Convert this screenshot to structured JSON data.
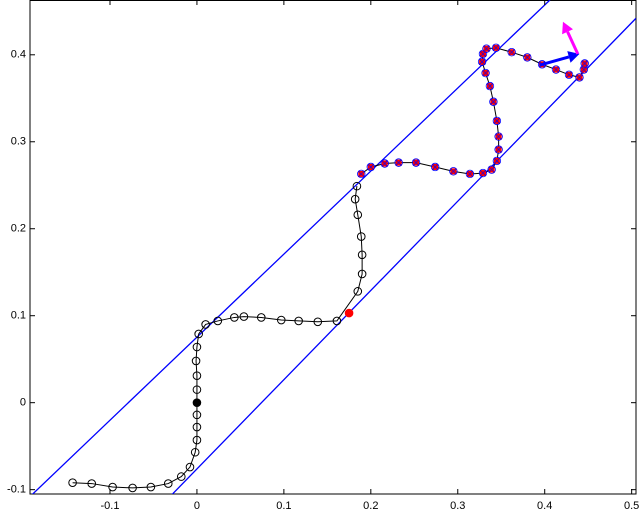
{
  "chart_data": {
    "type": "line",
    "xlim": [
      -0.192,
      0.505
    ],
    "ylim": [
      -0.105,
      0.463
    ],
    "xticks": [
      -0.1,
      0,
      0.1,
      0.2,
      0.3,
      0.4,
      0.5
    ],
    "yticks": [
      -0.1,
      0,
      0.1,
      0.2,
      0.3,
      0.4
    ],
    "series": [
      {
        "color": "#000000",
        "marker": "circle",
        "x": [
          -0.143,
          -0.121,
          -0.097,
          -0.074,
          -0.053,
          -0.033,
          -0.018,
          -0.008,
          -0.002,
          0,
          0,
          0,
          0,
          0,
          -0.001,
          0,
          0.002,
          0.01,
          0.024,
          0.043,
          0.054,
          0.074,
          0.097,
          0.117,
          0.139,
          0.161,
          0.185,
          0.19,
          0.19,
          0.189,
          0.185,
          0.182,
          0.184
        ],
        "y": [
          -0.092,
          -0.093,
          -0.097,
          -0.098,
          -0.097,
          -0.093,
          -0.085,
          -0.074,
          -0.057,
          -0.043,
          -0.028,
          -0.014,
          0.015,
          0.031,
          0.048,
          0.064,
          0.079,
          0.09,
          0.094,
          0.098,
          0.099,
          0.098,
          0.095,
          0.094,
          0.093,
          0.094,
          0.128,
          0.148,
          0.17,
          0.191,
          0.216,
          0.234,
          0.249
        ]
      },
      {
        "color": "#000000",
        "marker": "square",
        "marker_color": "#ff0000",
        "ring_color": "#0000ff",
        "x": [
          0.189,
          0.2,
          0.216,
          0.232,
          0.252,
          0.274,
          0.295,
          0.314,
          0.329,
          0.339,
          0.345,
          0.347,
          0.347,
          0.345,
          0.341,
          0.337,
          0.332,
          0.328,
          0.329,
          0.333,
          0.344,
          0.362,
          0.38,
          0.397,
          0.413,
          0.428,
          0.44,
          0.445,
          0.446
        ],
        "y": [
          0.263,
          0.271,
          0.275,
          0.276,
          0.276,
          0.271,
          0.266,
          0.263,
          0.264,
          0.268,
          0.278,
          0.291,
          0.306,
          0.324,
          0.346,
          0.364,
          0.379,
          0.392,
          0.401,
          0.407,
          0.408,
          0.403,
          0.397,
          0.389,
          0.383,
          0.377,
          0.374,
          0.383,
          0.39
        ]
      }
    ],
    "points": [
      {
        "x": 0,
        "y": 0,
        "color": "#000000"
      },
      {
        "x": 0.175,
        "y": 0.103,
        "color": "#ff0000"
      }
    ],
    "lines": [
      {
        "color": "#0000ff",
        "x": [
          -0.192,
          0.406
        ],
        "y": [
          -0.108,
          0.463
        ]
      },
      {
        "color": "#0000ff",
        "x": [
          -0.031,
          0.505
        ],
        "y": [
          -0.108,
          0.442
        ]
      }
    ],
    "arrows": [
      {
        "color": "#0000ff",
        "x": [
          0.394,
          0.44
        ],
        "y": [
          0.388,
          0.401
        ]
      },
      {
        "color": "#ff00ff",
        "x": [
          0.438,
          0.421
        ],
        "y": [
          0.401,
          0.438
        ]
      }
    ]
  }
}
